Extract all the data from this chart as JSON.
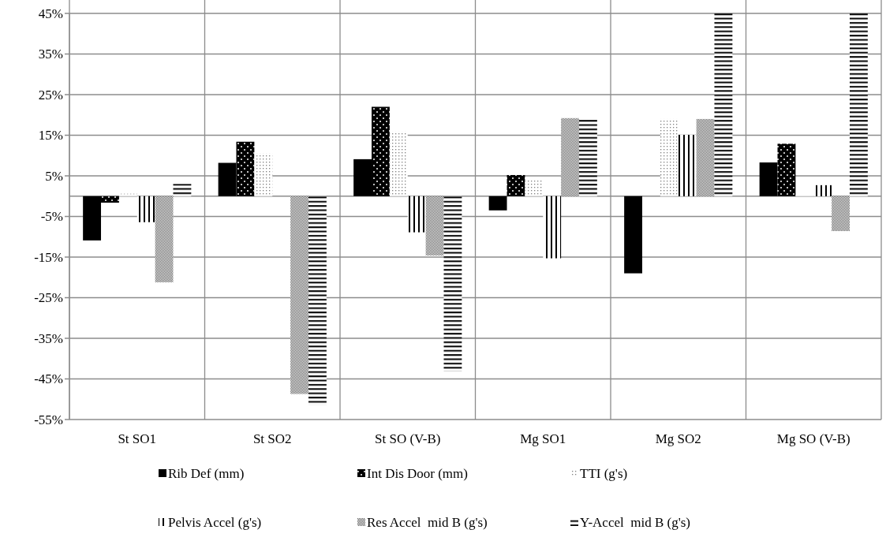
{
  "chart_data": {
    "type": "bar",
    "categories": [
      "St SO1",
      "St SO2",
      "St SO (V-B)",
      "Mg SO1",
      "Mg SO2",
      "Mg SO (V-B)"
    ],
    "series": [
      {
        "name": "Rib Def (mm)",
        "color": "#000000",
        "values": [
          -10.9,
          8.2,
          9.1,
          -3.5,
          -19,
          8.3
        ]
      },
      {
        "name": "Int Dis Door (mm)",
        "color": "#000000",
        "values": [
          -1.6,
          13.4,
          22,
          5.2,
          0,
          12.9
        ]
      },
      {
        "name": "TTI (g's)",
        "color": "#7f7f7f",
        "values": [
          0.6,
          10.5,
          15.9,
          3.9,
          19,
          0.3
        ]
      },
      {
        "name": "Pelvis Accel (g's)",
        "color": "#000000",
        "values": [
          -6.4,
          0,
          -8.9,
          -15.3,
          15.1,
          2.7
        ]
      },
      {
        "name": "Res Accel  mid B (g's)",
        "color": "#595959",
        "values": [
          -21.2,
          -48.7,
          -14.6,
          19.2,
          19,
          -8.6
        ]
      },
      {
        "name": "Y-Accel  mid B (g's)",
        "color": "#000000",
        "values": [
          3,
          -51.5,
          -43.1,
          19,
          45,
          45
        ]
      }
    ],
    "ylim": [
      -55,
      45
    ],
    "yticks": [
      {
        "value": -55,
        "label": "-55%"
      },
      {
        "value": -45,
        "label": "-45%"
      },
      {
        "value": -35,
        "label": "-35%"
      },
      {
        "value": -25,
        "label": "-25%"
      },
      {
        "value": -15,
        "label": "-15%"
      },
      {
        "value": -5,
        "label": "-5%"
      },
      {
        "value": 5,
        "label": "5%"
      },
      {
        "value": 15,
        "label": "15%"
      },
      {
        "value": 25,
        "label": "25%"
      },
      {
        "value": 35,
        "label": "35%"
      },
      {
        "value": 45,
        "label": "45%"
      }
    ],
    "grid": true,
    "legend": "bottom"
  }
}
